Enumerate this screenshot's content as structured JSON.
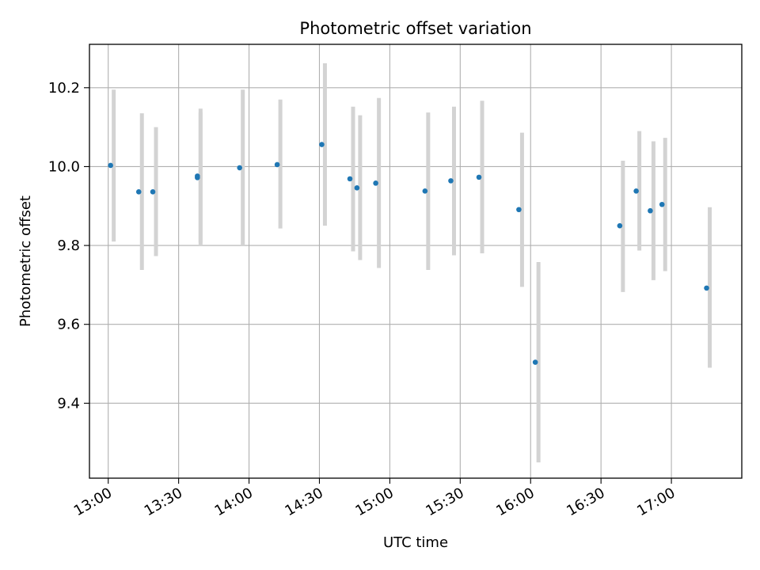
{
  "chart_data": {
    "type": "scatter",
    "title": "Photometric offset variation",
    "xlabel": "UTC time",
    "ylabel": "Photometric offset",
    "x_axis": {
      "kind": "time",
      "range": [
        "12:52",
        "17:30"
      ],
      "ticks": [
        "13:00",
        "13:30",
        "14:00",
        "14:30",
        "15:00",
        "15:30",
        "16:00",
        "16:30",
        "17:00"
      ],
      "tick_rotation_deg": 30
    },
    "y_axis": {
      "range": [
        9.21,
        10.31
      ],
      "ticks": [
        9.4,
        9.6,
        9.8,
        10.0,
        10.2
      ]
    },
    "grid": true,
    "colors": {
      "points": "#1f77b4",
      "error_bars": "#d3d3d3",
      "grid": "#b0b0b0"
    },
    "points": [
      {
        "x": "13:01",
        "y": 10.003,
        "err_low": 9.81,
        "err_high": 10.195
      },
      {
        "x": "13:13",
        "y": 9.936,
        "err_low": 9.738,
        "err_high": 10.135
      },
      {
        "x": "13:19",
        "y": 9.936,
        "err_low": 9.773,
        "err_high": 10.1
      },
      {
        "x": "13:38",
        "y": 9.972,
        "err_low": 9.807,
        "err_high": 10.137
      },
      {
        "x": "13:38",
        "y": 9.976,
        "err_low": 9.8,
        "err_high": 10.147
      },
      {
        "x": "13:56",
        "y": 9.997,
        "err_low": 9.8,
        "err_high": 10.195
      },
      {
        "x": "14:12",
        "y": 10.005,
        "err_low": 9.843,
        "err_high": 10.17
      },
      {
        "x": "14:31",
        "y": 10.056,
        "err_low": 9.85,
        "err_high": 10.262
      },
      {
        "x": "14:43",
        "y": 9.969,
        "err_low": 9.785,
        "err_high": 10.152
      },
      {
        "x": "14:46",
        "y": 9.946,
        "err_low": 9.763,
        "err_high": 10.13
      },
      {
        "x": "14:54",
        "y": 9.958,
        "err_low": 9.743,
        "err_high": 10.174
      },
      {
        "x": "15:15",
        "y": 9.938,
        "err_low": 9.738,
        "err_high": 10.137
      },
      {
        "x": "15:26",
        "y": 9.964,
        "err_low": 9.775,
        "err_high": 10.152
      },
      {
        "x": "15:38",
        "y": 9.973,
        "err_low": 9.78,
        "err_high": 10.167
      },
      {
        "x": "15:55",
        "y": 9.891,
        "err_low": 9.695,
        "err_high": 10.086
      },
      {
        "x": "16:02",
        "y": 9.504,
        "err_low": 9.25,
        "err_high": 9.758
      },
      {
        "x": "16:38",
        "y": 9.85,
        "err_low": 9.682,
        "err_high": 10.015
      },
      {
        "x": "16:45",
        "y": 9.938,
        "err_low": 9.787,
        "err_high": 10.09
      },
      {
        "x": "16:51",
        "y": 9.888,
        "err_low": 9.712,
        "err_high": 10.064
      },
      {
        "x": "16:56",
        "y": 9.904,
        "err_low": 9.735,
        "err_high": 10.073
      },
      {
        "x": "17:15",
        "y": 9.692,
        "err_low": 9.49,
        "err_high": 9.897
      }
    ]
  }
}
